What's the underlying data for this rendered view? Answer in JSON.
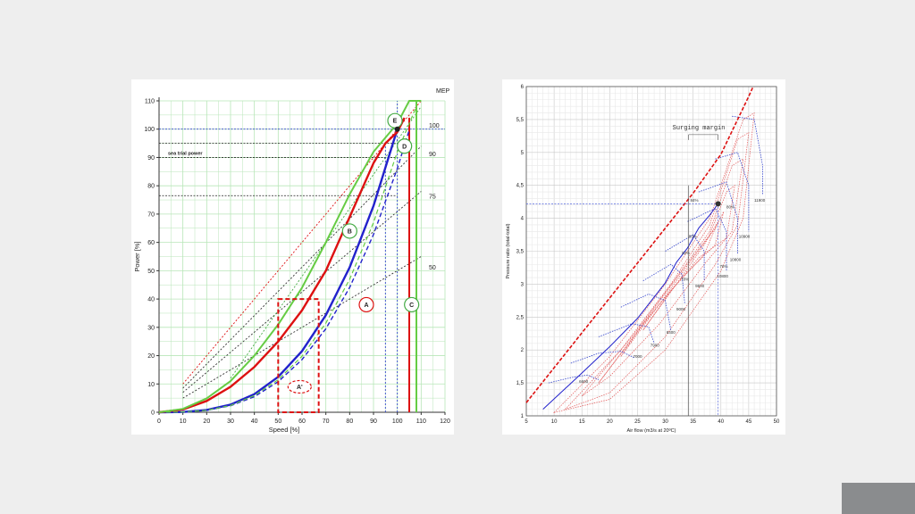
{
  "slide": {
    "background": "#eeeeee",
    "corner_block_color": "#8a8c8e"
  },
  "chart_data": [
    {
      "type": "line",
      "xlabel": "Speed [%]",
      "ylabel": "Power [%]",
      "xlim": [
        0,
        120
      ],
      "ylim": [
        0,
        110
      ],
      "xticks": [
        0,
        10,
        20,
        30,
        40,
        50,
        60,
        70,
        80,
        90,
        100,
        110,
        120
      ],
      "yticks": [
        0,
        10,
        20,
        30,
        40,
        50,
        60,
        70,
        80,
        90,
        100,
        110
      ],
      "grid": true,
      "grid_color": "#b8e6b8",
      "mep_title": "MEP",
      "mep_labels": [
        {
          "text": "100",
          "value": 100
        },
        {
          "text": "90",
          "value": 90
        },
        {
          "text": "75",
          "value": 75
        },
        {
          "text": "50",
          "value": 50
        }
      ],
      "reference_lines": [
        {
          "label": "sea trial power",
          "y": 90
        },
        {
          "label": "",
          "y": 95
        },
        {
          "label": "",
          "y": 76.5
        }
      ],
      "series": [
        {
          "color": "#2222cc",
          "style": "solid",
          "width": 2.4,
          "x": [
            0,
            10,
            20,
            30,
            40,
            50,
            60,
            70,
            80,
            90,
            100
          ],
          "y": [
            0,
            0.1,
            0.8,
            2.7,
            6.4,
            12.5,
            21.6,
            34.3,
            51.2,
            72.9,
            100
          ]
        },
        {
          "color": "#2222cc",
          "style": "dashed",
          "width": 1.4,
          "x": [
            0,
            10,
            20,
            30,
            40,
            50,
            60,
            70,
            80,
            90,
            100,
            105
          ],
          "y": [
            0,
            0.1,
            0.7,
            2.3,
            5.5,
            10.8,
            18.6,
            29.5,
            44.1,
            62.8,
            86.1,
            99.7
          ]
        },
        {
          "color": "#dd1111",
          "style": "solid",
          "width": 2.4,
          "x": [
            0,
            10,
            20,
            30,
            40,
            50,
            60,
            70,
            80,
            90,
            95,
            100,
            103
          ],
          "y": [
            0,
            1,
            4,
            9,
            16,
            25,
            36,
            50,
            69,
            88,
            95,
            99,
            104
          ]
        },
        {
          "color": "#66cc44",
          "style": "solid",
          "width": 2.0,
          "x": [
            0,
            10,
            20,
            30,
            40,
            50,
            60,
            70,
            80,
            90,
            95,
            100,
            105,
            110
          ],
          "y": [
            0,
            1.2,
            4.9,
            11,
            20,
            31,
            44,
            60,
            77,
            92,
            97,
            102,
            110,
            110
          ]
        },
        {
          "color": "#66cc44",
          "style": "dashed",
          "width": 1.2,
          "x": [
            0,
            10,
            20,
            30,
            40,
            50,
            60,
            70,
            80,
            90,
            100,
            108
          ],
          "y": [
            0,
            0.1,
            0.7,
            2.4,
            5.9,
            11.5,
            19.8,
            31.5,
            47,
            67,
            92,
            108
          ]
        }
      ],
      "straight_lines": [
        {
          "color": "#dd1111",
          "style": "dotted",
          "x": [
            10,
            110
          ],
          "y": [
            10,
            110
          ]
        },
        {
          "color": "#333333",
          "style": "dotted",
          "x": [
            10,
            110
          ],
          "y": [
            8.5,
            94
          ]
        },
        {
          "color": "#333333",
          "style": "dotted",
          "x": [
            10,
            110
          ],
          "y": [
            7,
            78
          ]
        },
        {
          "color": "#333333",
          "style": "dotted",
          "x": [
            10,
            110
          ],
          "y": [
            5,
            55
          ]
        },
        {
          "color": "#44aa44",
          "style": "dotted",
          "x": [
            30,
            110
          ],
          "y": [
            12,
            108
          ]
        }
      ],
      "limit_lines": [
        {
          "color": "#dd1111",
          "x": 105,
          "y": [
            0,
            104
          ]
        },
        {
          "color": "#66cc44",
          "x": 108,
          "y": [
            0,
            110
          ]
        },
        {
          "color": "#3344cc",
          "x": 100,
          "y": [
            0,
            110
          ],
          "style": "dotted"
        },
        {
          "color": "#3344cc",
          "x": 95,
          "y": [
            0,
            95
          ],
          "style": "dotted"
        }
      ],
      "nominal_point": {
        "x": 100,
        "y": 100
      },
      "areas": [
        {
          "label": "A",
          "x": 87,
          "y": 38,
          "color": "#dd1111"
        },
        {
          "label": "A'",
          "x": 59,
          "y": 9,
          "color": "#dd1111",
          "dashed": true
        },
        {
          "label": "B",
          "x": 80,
          "y": 64,
          "color": "#44aa44"
        },
        {
          "label": "C",
          "x": 106,
          "y": 38,
          "color": "#44aa44"
        },
        {
          "label": "D",
          "x": 103,
          "y": 94,
          "color": "#44aa44"
        },
        {
          "label": "E",
          "x": 99,
          "y": 103,
          "color": "#44aa44"
        }
      ],
      "dashed_box": {
        "x": [
          50,
          67
        ],
        "y": [
          0,
          40
        ],
        "color": "#dd1111"
      }
    },
    {
      "type": "line",
      "xlabel": "Air flow (m3/s at 20ºC)",
      "ylabel": "Pressure ratio (total-total)",
      "xlim": [
        5,
        50
      ],
      "ylim": [
        1,
        6
      ],
      "xticks": [
        5,
        10,
        15,
        20,
        25,
        30,
        35,
        40,
        45,
        50
      ],
      "yticks": [
        "1",
        "1,5",
        "2",
        "2,5",
        "3",
        "3,5",
        "4",
        "4,5",
        "5",
        "5,5",
        "6"
      ],
      "grid": true,
      "annotation": "Surging margin",
      "surge_line": {
        "color": "#dd1111",
        "style": "dashed",
        "x": [
          5,
          10,
          15,
          20,
          25,
          30,
          35,
          40,
          45,
          45.8
        ],
        "y": [
          1.2,
          1.73,
          2.26,
          2.79,
          3.32,
          3.85,
          4.38,
          4.97,
          5.85,
          6.0
        ]
      },
      "operating_line": {
        "color": "#2222cc",
        "x": [
          8,
          15,
          20,
          25,
          30,
          32,
          34,
          36,
          38,
          39.5
        ],
        "y": [
          1.1,
          1.65,
          2.05,
          2.48,
          3.02,
          3.33,
          3.55,
          3.85,
          4.05,
          4.22
        ]
      },
      "operating_point": {
        "x": 39.5,
        "y": 4.22
      },
      "speed_labels": [
        {
          "text": "6600",
          "x": 14.5,
          "y": 1.5
        },
        {
          "text": "7000",
          "x": 24.2,
          "y": 1.88
        },
        {
          "text": "7900",
          "x": 27.3,
          "y": 2.05
        },
        {
          "text": "8400",
          "x": 30.2,
          "y": 2.25
        },
        {
          "text": "9000",
          "x": 32,
          "y": 2.6
        },
        {
          "text": "9600",
          "x": 35.4,
          "y": 2.95
        },
        {
          "text": "10800",
          "x": 39.3,
          "y": 3.1
        },
        {
          "text": "10800",
          "x": 41.6,
          "y": 3.35
        },
        {
          "text": "10900",
          "x": 43.2,
          "y": 3.7
        },
        {
          "text": "11900",
          "x": 46,
          "y": 4.25
        }
      ],
      "efficiency_labels": [
        {
          "text": "84%",
          "x": 34.5,
          "y": 4.25
        },
        {
          "text": "83%",
          "x": 34.2,
          "y": 3.7
        },
        {
          "text": "82%",
          "x": 33,
          "y": 3.45
        },
        {
          "text": "80%",
          "x": 41,
          "y": 4.15
        },
        {
          "text": "78%",
          "x": 32.8,
          "y": 3.05
        },
        {
          "text": "76%",
          "x": 39.8,
          "y": 3.25
        }
      ],
      "speed_x": [
        6600,
        7000,
        7900,
        8400,
        9000,
        9600,
        10800,
        10800,
        10900,
        11900
      ]
    }
  ]
}
